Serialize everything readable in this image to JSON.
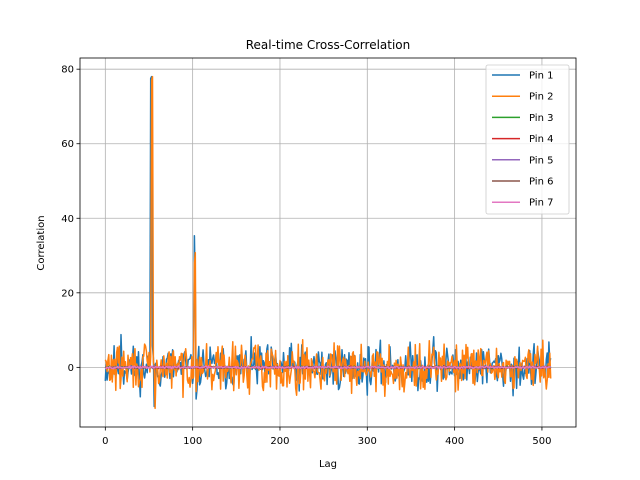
{
  "chart_data": {
    "type": "line",
    "title": "Real-time Cross-Correlation",
    "xlabel": "Lag",
    "ylabel": "Correlation",
    "xlim": [
      -29,
      539
    ],
    "ylim": [
      -16,
      83
    ],
    "xticks": [
      0,
      100,
      200,
      300,
      400,
      500
    ],
    "yticks": [
      0,
      20,
      40,
      60,
      80
    ],
    "grid": true,
    "legend_position": "top-right",
    "series": [
      {
        "name": "Pin 1",
        "color": "#1f77b4",
        "noise": 3.2,
        "seed": 11,
        "spikes": [
          [
            18,
            8.8
          ],
          [
            52,
            77.5
          ],
          [
            53,
            78.0
          ],
          [
            56,
            -10.5
          ],
          [
            102,
            35.3
          ],
          [
            103,
            20.0
          ],
          [
            104,
            -8.5
          ],
          [
            105,
            -6.0
          ],
          [
            376,
            8.2
          ],
          [
            467,
            -7.6
          ],
          [
            508,
            6.8
          ],
          [
            509,
            1.5
          ]
        ]
      },
      {
        "name": "Pin 2",
        "color": "#ff7f0e",
        "noise": 3.4,
        "seed": 29,
        "spikes": [
          [
            53,
            77.0
          ],
          [
            54,
            78.0
          ],
          [
            57,
            -11.0
          ],
          [
            102,
            28.0
          ],
          [
            103,
            30.8
          ],
          [
            104,
            -6.5
          ],
          [
            175,
            6.0
          ],
          [
            221,
            6.2
          ],
          [
            310,
            -6.5
          ],
          [
            402,
            6.0
          ],
          [
            505,
            -5.8
          ]
        ]
      },
      {
        "name": "Pin 3",
        "color": "#2ca02c",
        "noise": 0.15,
        "seed": 41,
        "spikes": []
      },
      {
        "name": "Pin 4",
        "color": "#d62728",
        "noise": 0.15,
        "seed": 53,
        "spikes": []
      },
      {
        "name": "Pin 5",
        "color": "#9467bd",
        "noise": 0.15,
        "seed": 67,
        "spikes": []
      },
      {
        "name": "Pin 6",
        "color": "#8c564b",
        "noise": 0.15,
        "seed": 79,
        "spikes": []
      },
      {
        "name": "Pin 7",
        "color": "#e377c2",
        "noise": 0.15,
        "seed": 97,
        "spikes": []
      }
    ],
    "x_range": [
      0,
      510
    ]
  }
}
